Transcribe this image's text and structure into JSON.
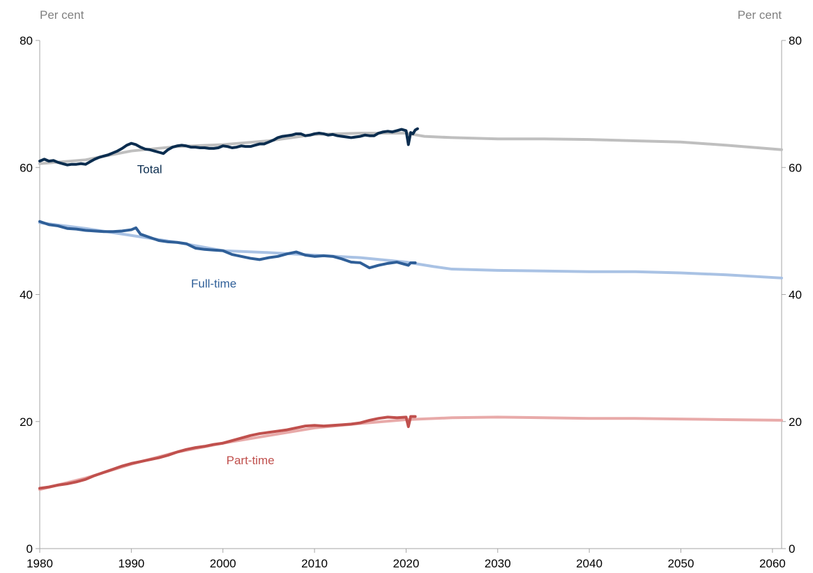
{
  "chart_data": {
    "type": "line",
    "y_unit_left": "Per cent",
    "y_unit_right": "Per cent",
    "xlim": [
      1980,
      2061
    ],
    "ylim": [
      0,
      80
    ],
    "x_ticks": [
      "1980",
      "1990",
      "2000",
      "2010",
      "2020",
      "2030",
      "2040",
      "2050",
      "2060"
    ],
    "y_ticks": [
      "0",
      "20",
      "40",
      "60",
      "80"
    ],
    "grid": false,
    "legend": "inline labels",
    "series": [
      {
        "name": "Total",
        "color": "#0b2d4f",
        "x": [
          1980,
          1980.5,
          1981,
          1981.5,
          1982,
          1982.5,
          1983,
          1983.5,
          1984,
          1984.5,
          1985,
          1985.5,
          1986,
          1986.5,
          1987,
          1987.5,
          1988,
          1988.5,
          1989,
          1989.5,
          1990,
          1990.5,
          1991,
          1991.5,
          1992,
          1992.5,
          1993,
          1993.5,
          1994,
          1994.5,
          1995,
          1995.5,
          1996,
          1996.5,
          1997,
          1997.5,
          1998,
          1998.5,
          1999,
          1999.5,
          2000,
          2000.5,
          2001,
          2001.5,
          2002,
          2002.5,
          2003,
          2003.5,
          2004,
          2004.5,
          2005,
          2005.5,
          2006,
          2006.5,
          2007,
          2007.5,
          2008,
          2008.5,
          2009,
          2009.5,
          2010,
          2010.5,
          2011,
          2011.5,
          2012,
          2012.5,
          2013,
          2013.5,
          2014,
          2014.5,
          2015,
          2015.5,
          2016,
          2016.5,
          2017,
          2017.5,
          2018,
          2018.5,
          2019,
          2019.5,
          2020,
          2020.25,
          2020.5,
          2020.75,
          2021,
          2021.25
        ],
        "values": [
          61.0,
          61.3,
          61.0,
          61.1,
          60.8,
          60.6,
          60.4,
          60.5,
          60.5,
          60.6,
          60.5,
          60.9,
          61.3,
          61.6,
          61.8,
          62.0,
          62.3,
          62.6,
          63.0,
          63.5,
          63.8,
          63.6,
          63.2,
          62.9,
          62.8,
          62.6,
          62.4,
          62.2,
          62.8,
          63.2,
          63.4,
          63.5,
          63.4,
          63.2,
          63.2,
          63.1,
          63.1,
          63.0,
          63.0,
          63.1,
          63.4,
          63.3,
          63.1,
          63.2,
          63.4,
          63.3,
          63.3,
          63.5,
          63.7,
          63.7,
          64.0,
          64.3,
          64.7,
          64.9,
          65.0,
          65.1,
          65.3,
          65.3,
          65.0,
          65.1,
          65.3,
          65.4,
          65.3,
          65.1,
          65.2,
          65.0,
          64.9,
          64.8,
          64.7,
          64.8,
          64.9,
          65.1,
          65.0,
          65.0,
          65.4,
          65.6,
          65.7,
          65.6,
          65.8,
          66.0,
          65.8,
          63.6,
          65.5,
          65.3,
          65.9,
          66.1
        ]
      },
      {
        "name": "",
        "color": "#bfbfbf",
        "x": [
          1980,
          1985,
          1990,
          1995,
          2000,
          2005,
          2010,
          2015,
          2020,
          2022,
          2025,
          2030,
          2035,
          2040,
          2045,
          2050,
          2055,
          2061
        ],
        "values": [
          60.6,
          61.2,
          62.6,
          63.3,
          63.6,
          64.2,
          65.2,
          65.4,
          65.4,
          64.9,
          64.7,
          64.5,
          64.5,
          64.4,
          64.2,
          64.0,
          63.5,
          62.8
        ]
      },
      {
        "name": "Full-time",
        "color": "#2f5f98",
        "x": [
          1980,
          1981,
          1982,
          1983,
          1984,
          1985,
          1986,
          1987,
          1988,
          1989,
          1990,
          1990.5,
          1991,
          1992,
          1993,
          1994,
          1995,
          1996,
          1997,
          1998,
          1999,
          2000,
          2001,
          2002,
          2003,
          2004,
          2005,
          2006,
          2007,
          2008,
          2009,
          2010,
          2011,
          2012,
          2013,
          2014,
          2015,
          2016,
          2017,
          2018,
          2019,
          2020,
          2020.25,
          2020.5,
          2021
        ],
        "values": [
          51.5,
          51.0,
          50.8,
          50.4,
          50.3,
          50.1,
          50.0,
          49.9,
          49.9,
          50.0,
          50.2,
          50.5,
          49.5,
          49.0,
          48.5,
          48.3,
          48.2,
          48.0,
          47.3,
          47.1,
          47.0,
          46.9,
          46.3,
          46.0,
          45.7,
          45.5,
          45.8,
          46.0,
          46.4,
          46.7,
          46.2,
          46.0,
          46.1,
          46.0,
          45.6,
          45.1,
          45.0,
          44.2,
          44.6,
          44.9,
          45.1,
          44.7,
          44.6,
          45.0,
          45.0
        ]
      },
      {
        "name": "",
        "color": "#a9c2e4",
        "x": [
          1980,
          1985,
          1990,
          1995,
          2000,
          2005,
          2010,
          2015,
          2020,
          2023,
          2025,
          2030,
          2035,
          2040,
          2045,
          2050,
          2055,
          2061
        ],
        "values": [
          51.3,
          50.4,
          49.3,
          48.2,
          46.9,
          46.6,
          46.2,
          45.8,
          45.1,
          44.4,
          44.0,
          43.8,
          43.7,
          43.6,
          43.6,
          43.4,
          43.1,
          42.6
        ]
      },
      {
        "name": "Part-time",
        "color": "#c0504d",
        "x": [
          1980,
          1981,
          1982,
          1983,
          1984,
          1985,
          1986,
          1987,
          1988,
          1989,
          1990,
          1991,
          1992,
          1993,
          1994,
          1995,
          1996,
          1997,
          1998,
          1999,
          2000,
          2001,
          2002,
          2003,
          2004,
          2005,
          2006,
          2007,
          2008,
          2009,
          2010,
          2011,
          2012,
          2013,
          2014,
          2015,
          2016,
          2017,
          2018,
          2019,
          2020,
          2020.25,
          2020.5,
          2021
        ],
        "values": [
          9.5,
          9.7,
          10.0,
          10.2,
          10.5,
          10.9,
          11.5,
          12.0,
          12.5,
          13.0,
          13.4,
          13.7,
          14.0,
          14.3,
          14.7,
          15.2,
          15.6,
          15.9,
          16.1,
          16.4,
          16.6,
          17.0,
          17.4,
          17.8,
          18.1,
          18.3,
          18.5,
          18.7,
          19.0,
          19.3,
          19.4,
          19.3,
          19.4,
          19.5,
          19.6,
          19.8,
          20.2,
          20.5,
          20.7,
          20.6,
          20.7,
          19.2,
          20.8,
          20.8
        ]
      },
      {
        "name": "",
        "color": "#e8aaa9",
        "x": [
          1980,
          1985,
          1990,
          1995,
          2000,
          2005,
          2010,
          2015,
          2020,
          2025,
          2030,
          2035,
          2040,
          2045,
          2050,
          2055,
          2061
        ],
        "values": [
          9.3,
          11.1,
          13.3,
          15.2,
          16.6,
          17.8,
          19.0,
          19.7,
          20.3,
          20.6,
          20.7,
          20.6,
          20.5,
          20.5,
          20.4,
          20.3,
          20.2
        ]
      }
    ]
  }
}
